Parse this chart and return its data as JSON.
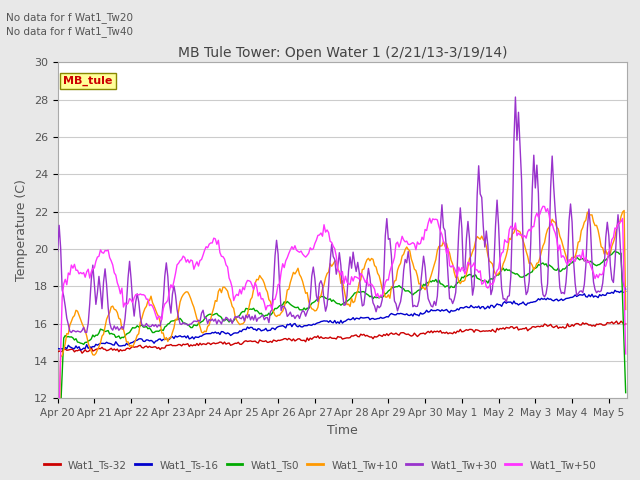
{
  "title": "MB Tule Tower: Open Water 1 (2/21/13-3/19/14)",
  "xlabel": "Time",
  "ylabel": "Temperature (C)",
  "top_note1": "No data for f Wat1_Tw20",
  "top_note2": "No data for f Wat1_Tw40",
  "legend_label": "MB_tule",
  "ylim": [
    12,
    30
  ],
  "yticks": [
    12,
    14,
    16,
    18,
    20,
    22,
    24,
    26,
    28,
    30
  ],
  "line_labels": [
    "Wat1_Ts-32",
    "Wat1_Ts-16",
    "Wat1_Ts0",
    "Wat1_Tw+10",
    "Wat1_Tw+30",
    "Wat1_Tw+50"
  ],
  "line_colors": [
    "#cc0000",
    "#0000cc",
    "#00aa00",
    "#ff9900",
    "#9933cc",
    "#ff33ff"
  ],
  "background_color": "#e8e8e8",
  "plot_bg_color": "#ffffff",
  "grid_color": "#cccccc"
}
